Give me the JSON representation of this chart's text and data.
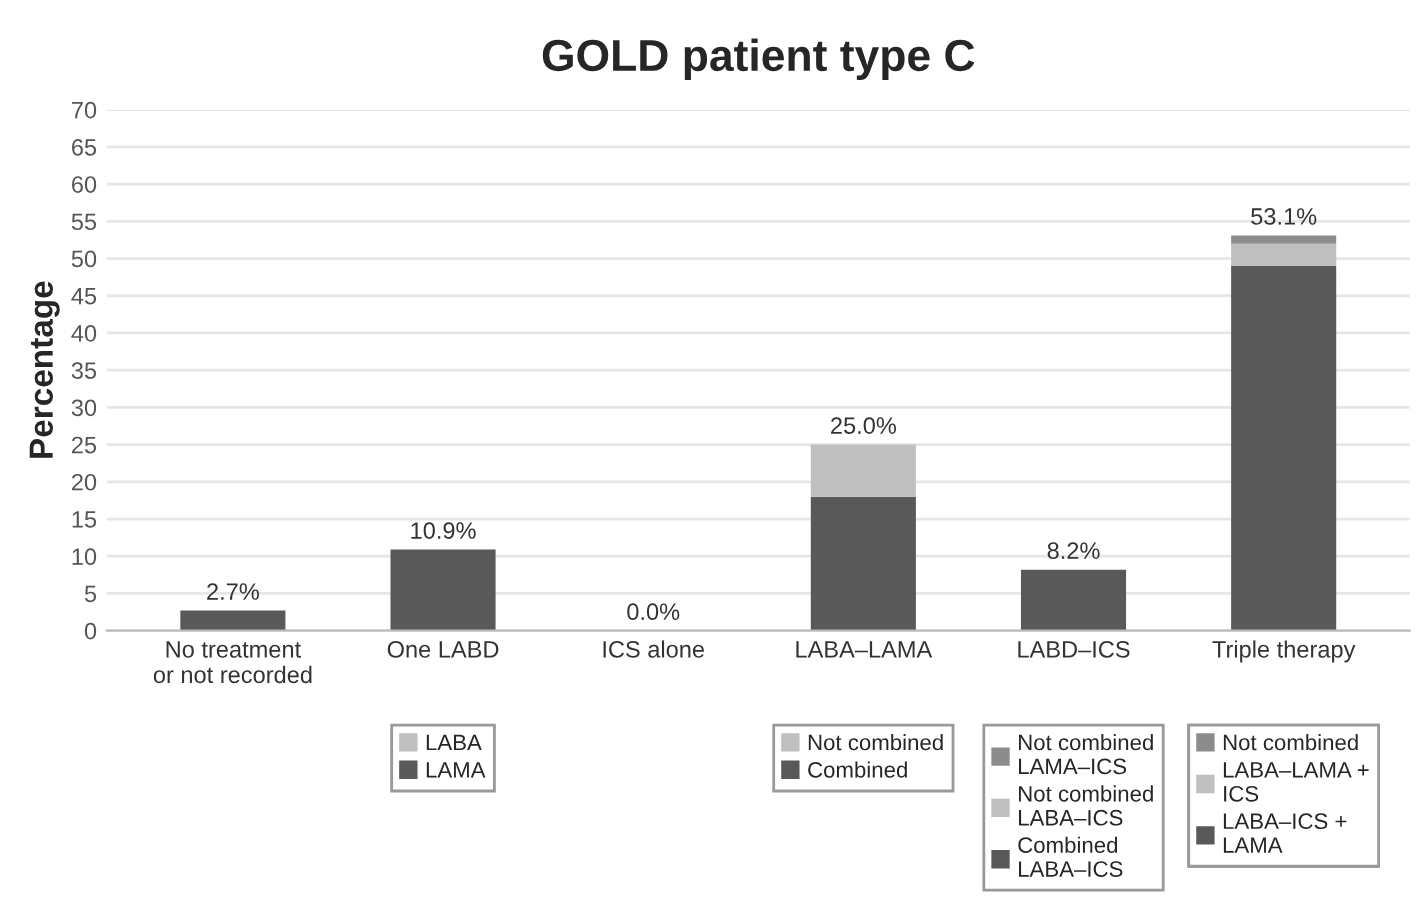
{
  "chart_data": {
    "type": "bar",
    "title": "GOLD patient type C",
    "ylabel": "Percentage",
    "stacked": true,
    "grid": "y",
    "legend": "bottom",
    "categories": [
      "No treatment\nor not recorded",
      "One LABD",
      "ICS alone",
      "LABA–LAMA",
      "LABD–ICS",
      "Triple therapy"
    ],
    "ylim": [
      0,
      70
    ],
    "yticks": [
      0,
      5,
      10,
      15,
      20,
      25,
      30,
      35,
      40,
      45,
      50,
      55,
      60,
      65,
      70
    ],
    "totals": [
      "2.7%",
      "10.9%",
      "0.0%",
      "25.0%",
      "8.2%",
      "53.1%"
    ],
    "series": [
      {
        "color": "#595959",
        "values": [
          2.7,
          null,
          0.0,
          null,
          null,
          null
        ]
      },
      {
        "name": "LAMA",
        "color": "#595959",
        "values": [
          null,
          10.9,
          null,
          null,
          null,
          null
        ]
      },
      {
        "name": "LABA",
        "color": "#bfbfbf",
        "values": [
          null,
          0,
          null,
          null,
          null,
          null
        ]
      },
      {
        "name": "Combined",
        "color": "#595959",
        "values": [
          null,
          null,
          null,
          18.0,
          null,
          null
        ]
      },
      {
        "name": "Not combined",
        "color": "#bfbfbf",
        "values": [
          null,
          null,
          null,
          7.0,
          null,
          null
        ]
      },
      {
        "name": "Combined\nLABA–ICS",
        "color": "#595959",
        "values": [
          null,
          null,
          null,
          null,
          8.2,
          null
        ]
      },
      {
        "name": "Not combined\nLABA–ICS",
        "color": "#bfbfbf",
        "values": [
          null,
          null,
          null,
          null,
          0,
          null
        ]
      },
      {
        "name": "Not combined\nLAMA–ICS",
        "color": "#8c8c8c",
        "values": [
          null,
          null,
          null,
          null,
          0,
          null
        ]
      },
      {
        "name": "LABA–ICS +\nLAMA",
        "color": "#595959",
        "values": [
          null,
          null,
          null,
          null,
          null,
          49.0
        ]
      },
      {
        "name": "LABA–LAMA +\nICS",
        "color": "#bfbfbf",
        "values": [
          null,
          null,
          null,
          null,
          null,
          3.0
        ]
      },
      {
        "name": "Not combined",
        "color": "#8c8c8c",
        "values": [
          null,
          null,
          null,
          null,
          null,
          1.1
        ]
      }
    ]
  }
}
